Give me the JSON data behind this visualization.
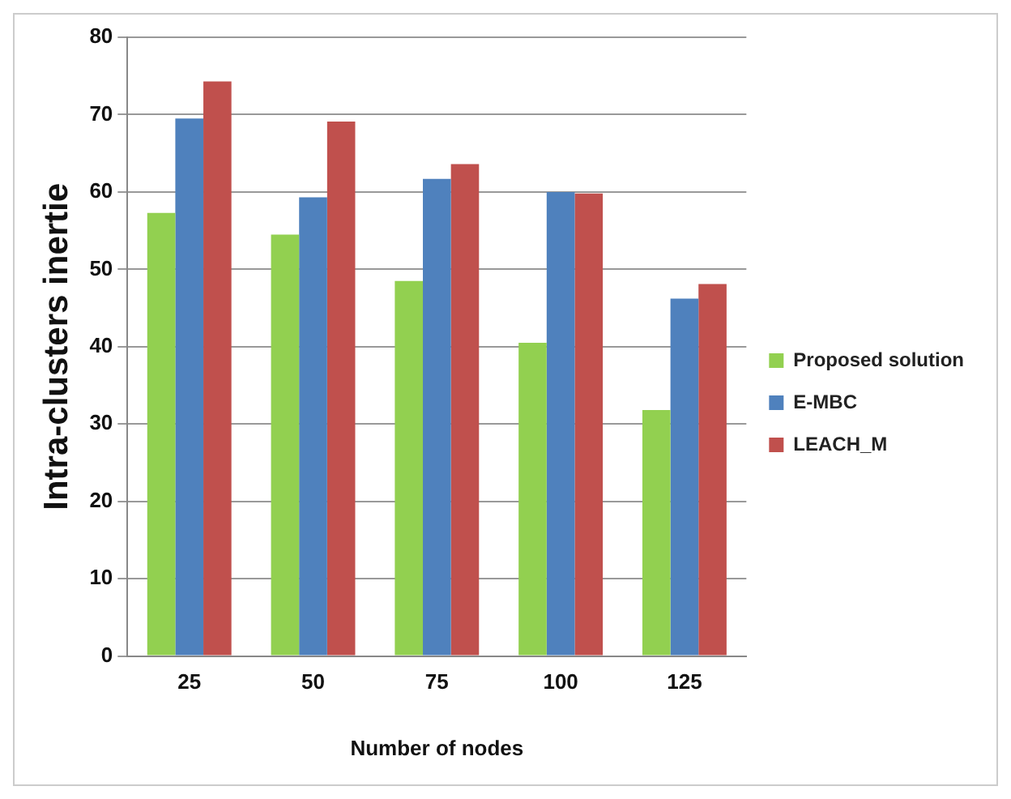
{
  "chart_data": {
    "type": "bar",
    "xlabel": "Number of nodes",
    "ylabel": "Intra-clusters inertie",
    "categories": [
      "25",
      "50",
      "75",
      "100",
      "125"
    ],
    "series": [
      {
        "name": "Proposed solution",
        "color": "#92d050",
        "values": [
          57.3,
          54.5,
          48.5,
          40.5,
          31.8
        ]
      },
      {
        "name": "E-MBC",
        "color": "#4f81bd",
        "values": [
          69.5,
          59.3,
          61.7,
          60,
          46.2
        ]
      },
      {
        "name": "LEACH_M",
        "color": "#c0504d",
        "values": [
          74.3,
          69.1,
          63.6,
          59.8,
          48.1
        ]
      }
    ],
    "ylim": [
      0,
      80
    ],
    "yticks": [
      0,
      10,
      20,
      30,
      40,
      50,
      60,
      70,
      80
    ],
    "grid": "y",
    "legend": "right"
  }
}
